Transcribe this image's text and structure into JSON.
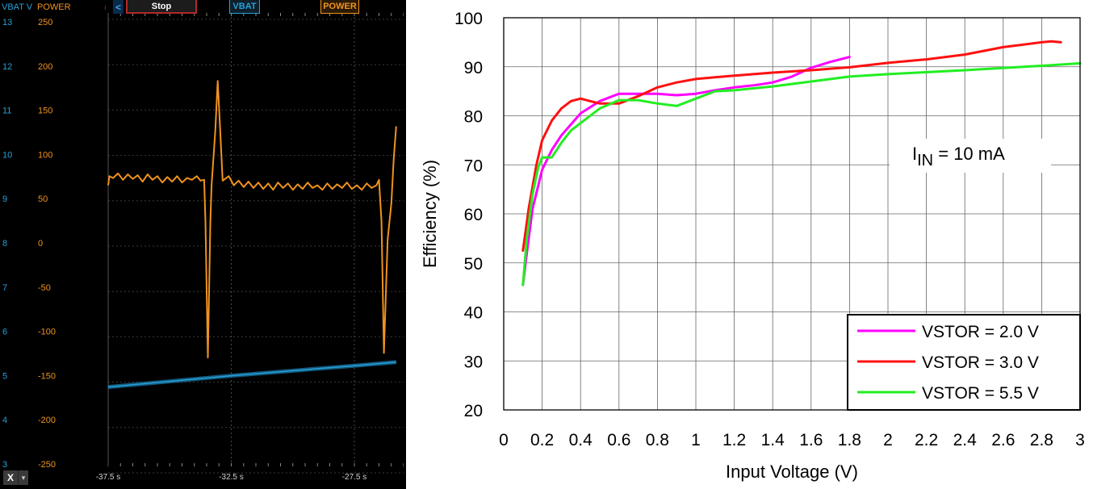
{
  "scope": {
    "header": {
      "vbat_label": "VBAT V",
      "power_label": "POWER",
      "small_marker": "ı",
      "nav_arrow": "<",
      "stop_label": "Stop",
      "vbat_tab": "VBAT",
      "power_tab": "POWER"
    },
    "vbat_axis": [
      "13",
      "12",
      "11",
      "10",
      "9",
      "8",
      "7",
      "6",
      "5",
      "4",
      "3"
    ],
    "power_axis": [
      "250",
      "200",
      "150",
      "100",
      "50",
      "0",
      "-50",
      "-100",
      "-150",
      "-200",
      "-250"
    ],
    "time_ticks": [
      {
        "t": -37.5,
        "label": "-37.5 s"
      },
      {
        "t": -32.5,
        "label": "-32.5 s"
      },
      {
        "t": -27.5,
        "label": "-27.5 s"
      }
    ],
    "time_range": [
      -37.5,
      -25.5
    ],
    "power_range": [
      -250,
      250
    ],
    "vbat_range": [
      3,
      13
    ],
    "x_button": "X",
    "x_dropdown_icon": "▾",
    "colors": {
      "vbat": "#27a0d8",
      "power": "#f0921e",
      "stop_border": "#b1282c"
    },
    "power_trace": [
      [
        -37.5,
        60
      ],
      [
        -37.45,
        70
      ],
      [
        -37.3,
        68
      ],
      [
        -37.1,
        73
      ],
      [
        -36.9,
        66
      ],
      [
        -36.7,
        72
      ],
      [
        -36.5,
        67
      ],
      [
        -36.3,
        71
      ],
      [
        -36.1,
        64
      ],
      [
        -35.9,
        72
      ],
      [
        -35.7,
        66
      ],
      [
        -35.5,
        70
      ],
      [
        -35.3,
        63
      ],
      [
        -35.1,
        69
      ],
      [
        -34.9,
        64
      ],
      [
        -34.7,
        70
      ],
      [
        -34.5,
        63
      ],
      [
        -34.3,
        68
      ],
      [
        -34.1,
        66
      ],
      [
        -33.9,
        70
      ],
      [
        -33.75,
        65
      ],
      [
        -33.6,
        66
      ],
      [
        -33.55,
        20
      ],
      [
        -33.45,
        -130
      ],
      [
        -33.35,
        20
      ],
      [
        -33.3,
        60
      ],
      [
        -33.15,
        120
      ],
      [
        -33.05,
        175
      ],
      [
        -32.95,
        120
      ],
      [
        -32.85,
        65
      ],
      [
        -32.6,
        70
      ],
      [
        -32.4,
        60
      ],
      [
        -32.2,
        65
      ],
      [
        -32.0,
        58
      ],
      [
        -31.8,
        64
      ],
      [
        -31.6,
        57
      ],
      [
        -31.4,
        63
      ],
      [
        -31.2,
        56
      ],
      [
        -31.0,
        62
      ],
      [
        -30.8,
        55
      ],
      [
        -30.6,
        63
      ],
      [
        -30.4,
        57
      ],
      [
        -30.2,
        62
      ],
      [
        -30.0,
        55
      ],
      [
        -29.8,
        61
      ],
      [
        -29.6,
        56
      ],
      [
        -29.4,
        63
      ],
      [
        -29.2,
        57
      ],
      [
        -29.0,
        60
      ],
      [
        -28.8,
        55
      ],
      [
        -28.6,
        62
      ],
      [
        -28.4,
        56
      ],
      [
        -28.2,
        61
      ],
      [
        -28.0,
        57
      ],
      [
        -27.8,
        63
      ],
      [
        -27.6,
        56
      ],
      [
        -27.4,
        60
      ],
      [
        -27.2,
        55
      ],
      [
        -27.0,
        62
      ],
      [
        -26.8,
        57
      ],
      [
        -26.6,
        60
      ],
      [
        -26.5,
        66
      ],
      [
        -26.4,
        20
      ],
      [
        -26.3,
        -125
      ],
      [
        -26.15,
        0
      ],
      [
        -26.0,
        40
      ],
      [
        -25.9,
        90
      ],
      [
        -25.8,
        125
      ]
    ],
    "vbat_trace": [
      [
        -37.5,
        4.75
      ],
      [
        -32.5,
        5.0
      ],
      [
        -27.5,
        5.22
      ],
      [
        -25.8,
        5.3
      ]
    ]
  },
  "chart_data": {
    "type": "line",
    "xlabel": "Input Voltage (V)",
    "ylabel": "Efficiency (%)",
    "xlim": [
      0,
      3
    ],
    "ylim": [
      20,
      100
    ],
    "xticks": [
      0,
      0.2,
      0.4,
      0.6,
      0.8,
      1,
      1.2,
      1.4,
      1.6,
      1.8,
      2,
      2.2,
      2.4,
      2.6,
      2.8,
      3
    ],
    "xtick_labels": [
      "0",
      "0.2",
      "0.4",
      "0.6",
      "0.8",
      "1",
      "1.2",
      "1.4",
      "1.6",
      "1.8",
      "2",
      "2.2",
      "2.4",
      "2.6",
      "2.8",
      "3"
    ],
    "yticks": [
      20,
      30,
      40,
      50,
      60,
      70,
      80,
      90,
      100
    ],
    "ytick_labels": [
      "20",
      "30",
      "40",
      "50",
      "60",
      "70",
      "80",
      "90",
      "100"
    ],
    "grid": true,
    "legend_position": "bottom-right",
    "annotation": {
      "prefix": "I",
      "subscript": "IN",
      "suffix": " = 10 mA"
    },
    "series": [
      {
        "name": "VSTOR = 2.0 V",
        "color": "#ff00ff",
        "x": [
          0.1,
          0.12,
          0.15,
          0.2,
          0.25,
          0.3,
          0.4,
          0.5,
          0.6,
          0.7,
          0.8,
          0.9,
          1.0,
          1.1,
          1.2,
          1.3,
          1.4,
          1.5,
          1.6,
          1.7,
          1.8
        ],
        "y": [
          45.5,
          52,
          61,
          69,
          73,
          76,
          80.5,
          83,
          84.5,
          84.5,
          84.5,
          84.2,
          84.5,
          85.2,
          85.8,
          86.2,
          86.8,
          88,
          89.8,
          91,
          92
        ]
      },
      {
        "name": "VSTOR = 3.0 V",
        "color": "#ff1010",
        "x": [
          0.1,
          0.13,
          0.17,
          0.2,
          0.25,
          0.3,
          0.35,
          0.4,
          0.45,
          0.5,
          0.6,
          0.7,
          0.8,
          0.9,
          1.0,
          1.2,
          1.4,
          1.6,
          1.8,
          2.0,
          2.2,
          2.4,
          2.6,
          2.8,
          2.85,
          2.9
        ],
        "y": [
          52.5,
          61,
          70,
          75,
          79,
          81.5,
          83,
          83.5,
          83,
          82.5,
          82.5,
          84,
          85.8,
          86.8,
          87.5,
          88.2,
          88.8,
          89.3,
          89.9,
          90.8,
          91.5,
          92.5,
          94,
          95,
          95.2,
          95
        ]
      },
      {
        "name": "VSTOR = 5.5 V",
        "color": "#22ee22",
        "x": [
          0.1,
          0.12,
          0.15,
          0.18,
          0.2,
          0.25,
          0.3,
          0.35,
          0.4,
          0.5,
          0.6,
          0.7,
          0.8,
          0.9,
          1.0,
          1.1,
          1.2,
          1.4,
          1.6,
          1.8,
          2.0,
          2.4,
          2.8,
          3.0
        ],
        "y": [
          45.5,
          55,
          64,
          69.5,
          71.5,
          71.5,
          74.5,
          77,
          78.5,
          81.5,
          83.2,
          83.2,
          82.5,
          82,
          83.5,
          85,
          85.2,
          86,
          87,
          88,
          88.5,
          89.3,
          90.2,
          90.7
        ]
      }
    ]
  }
}
